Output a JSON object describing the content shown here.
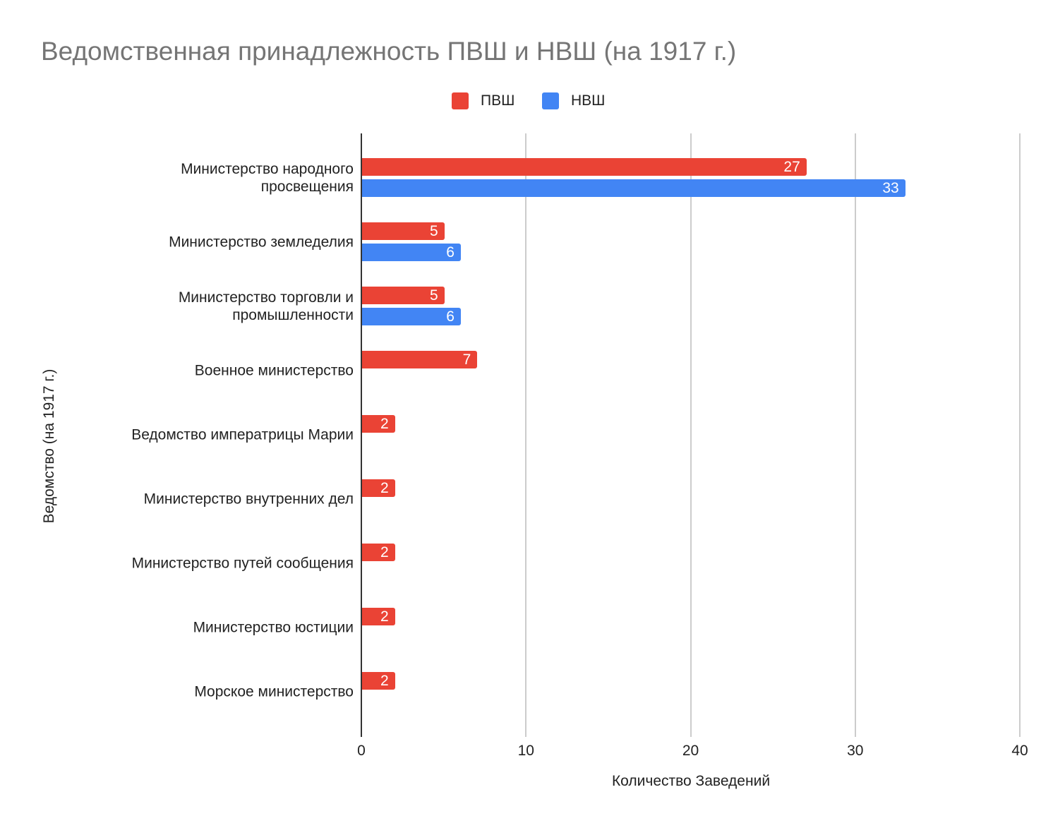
{
  "chart_data": {
    "type": "bar",
    "orientation": "horizontal",
    "title": "Ведомственная принадлежность ПВШ и НВШ (на 1917 г.)",
    "xlabel": "Количество Заведений",
    "ylabel": "Ведомство (на 1917 г.)",
    "xlim": [
      0,
      40
    ],
    "xticks": [
      "0",
      "10",
      "20",
      "30",
      "40"
    ],
    "grid": true,
    "legend_position": "top",
    "categories": [
      "Министерство народного\nпросвещения",
      "Министерство земледелия",
      "Министерство торговли и\nпромышленности",
      "Военное министерство",
      "Ведомство императрицы Марии",
      "Министерство внутренних дел",
      "Министерство путей сообщения",
      "Министерство юстиции",
      "Морское министерство"
    ],
    "series": [
      {
        "name": "ПВШ",
        "color": "#ea4335",
        "values": [
          27,
          5,
          5,
          7,
          2,
          2,
          2,
          2,
          2
        ]
      },
      {
        "name": "НВШ",
        "color": "#4285f4",
        "values": [
          33,
          6,
          6,
          null,
          null,
          null,
          null,
          null,
          null
        ]
      }
    ]
  }
}
